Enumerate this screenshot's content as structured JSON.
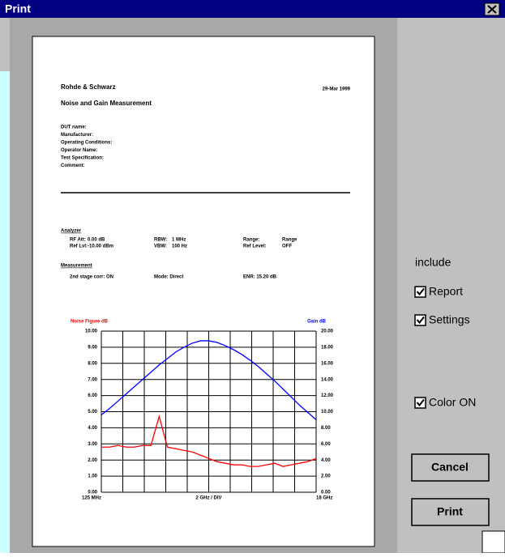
{
  "window": {
    "title": "Print"
  },
  "report": {
    "company": "Rohde & Schwarz",
    "date": "29-Mar 1999",
    "heading": "Noise and Gain Measurement",
    "fields": [
      "DUT name:",
      "Manufacturer:",
      "Operating Conditions:",
      "Operator Name:",
      "Test Specification:",
      "Comment:"
    ],
    "analyzer": {
      "title": "Analyzer",
      "rows": [
        [
          "RF Att:",
          "0.00 dB",
          "RBW:",
          "1 MHz",
          "Range:",
          "Range"
        ],
        [
          "Ref Lvl:",
          "-10.00 dBm",
          "VBW:",
          "100 Hz",
          "Ref Level:",
          "OFF"
        ]
      ]
    },
    "measurement": {
      "title": "Measurement",
      "row": [
        "2nd stage corr: ON",
        "Mode: Direct",
        "ENR: 15.20 dB"
      ]
    }
  },
  "chart_data": {
    "type": "line",
    "y_label": "Noise Figure dB",
    "y2_label": "Gain dB",
    "x_labels": [
      "125 MHz",
      "2 GHz / DIV",
      "18 GHz"
    ],
    "ylim": [
      0,
      10
    ],
    "yticks": [
      {
        "value": 0,
        "label": "0.00"
      },
      {
        "value": 1,
        "label": "1.00"
      },
      {
        "value": 2,
        "label": "2.00"
      },
      {
        "value": 3,
        "label": "3.00"
      },
      {
        "value": 4,
        "label": "4.00"
      },
      {
        "value": 5,
        "label": "5.00"
      },
      {
        "value": 6,
        "label": "6.00"
      },
      {
        "value": 7,
        "label": "7.00"
      },
      {
        "value": 8,
        "label": "8.00"
      },
      {
        "value": 9,
        "label": "9.00"
      },
      {
        "value": 10,
        "label": "10.00"
      }
    ],
    "y2lim": [
      0,
      20
    ],
    "y2ticks": [
      {
        "value": 0,
        "label": "0.00"
      },
      {
        "value": 2,
        "label": "2.00"
      },
      {
        "value": 4,
        "label": "4.00"
      },
      {
        "value": 6,
        "label": "6.00"
      },
      {
        "value": 8,
        "label": "8.00"
      },
      {
        "value": 10,
        "label": "10.00"
      },
      {
        "value": 12,
        "label": "12.00"
      },
      {
        "value": 14,
        "label": "14.00"
      },
      {
        "value": 16,
        "label": "16.00"
      },
      {
        "value": 18,
        "label": "18.00"
      },
      {
        "value": 20,
        "label": "20.00"
      }
    ],
    "xdivisions": 10,
    "grid": true,
    "series": [
      {
        "name": "Noise Figure",
        "color": "#ff0000",
        "values": [
          2.8,
          2.8,
          2.9,
          2.8,
          2.8,
          2.9,
          2.9,
          4.7,
          2.8,
          2.7,
          2.6,
          2.5,
          2.3,
          2.1,
          1.9,
          1.8,
          1.7,
          1.7,
          1.6,
          1.6,
          1.7,
          1.8,
          1.6,
          1.7,
          1.8,
          1.9,
          2.1
        ]
      },
      {
        "name": "Gain",
        "color": "#0000ff",
        "axis": "y2",
        "values": [
          9.6,
          10.4,
          11.3,
          12.2,
          13.1,
          14.0,
          14.9,
          15.8,
          16.6,
          17.4,
          18.0,
          18.5,
          18.8,
          18.8,
          18.6,
          18.2,
          17.7,
          17.1,
          16.4,
          15.6,
          14.7,
          13.8,
          12.8,
          11.8,
          10.8,
          9.9,
          9.0
        ]
      }
    ]
  },
  "options": {
    "title": "include",
    "checkboxes": [
      {
        "label": "Report",
        "checked": true
      },
      {
        "label": "Settings",
        "checked": true
      },
      {
        "label": "Color ON",
        "checked": true
      }
    ]
  },
  "buttons": [
    "Cancel",
    "Print"
  ]
}
